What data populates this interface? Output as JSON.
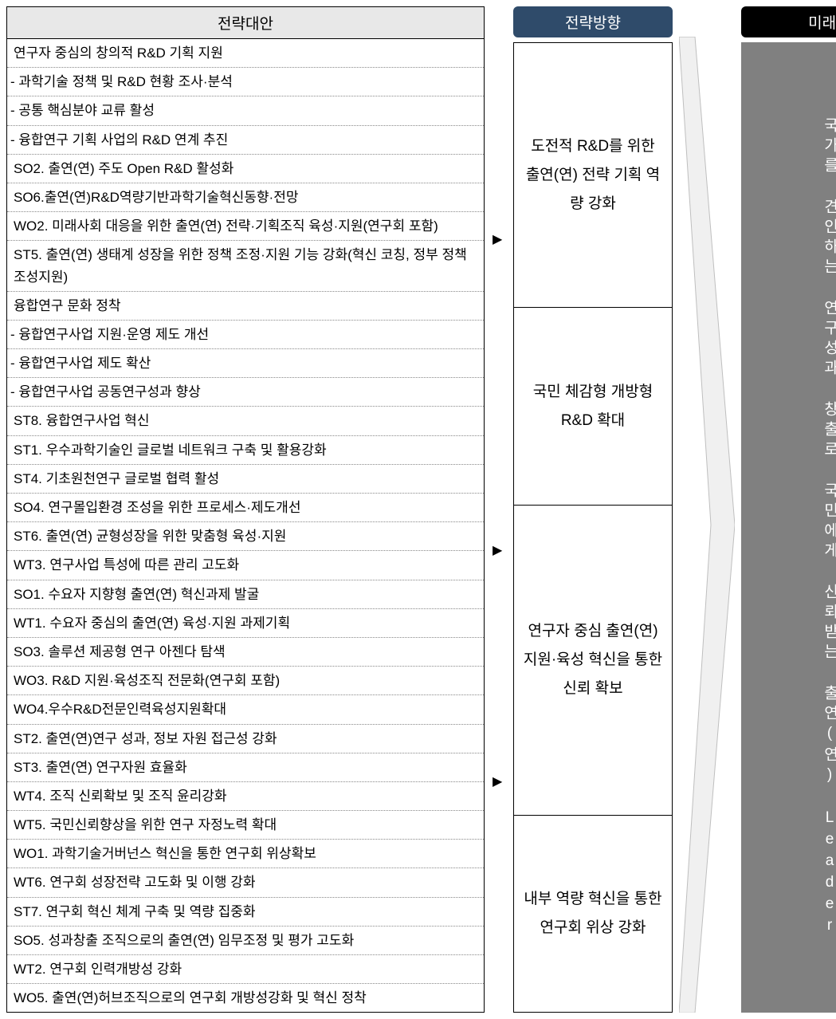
{
  "colors": {
    "left_header_bg": "#e8e8e8",
    "mid_header_bg": "#2f4b6a",
    "right_header_bg": "#000000",
    "right_body_bg": "#808080",
    "border": "#000000",
    "dotted_border": "#888888",
    "text": "#000000",
    "header_text": "#ffffff",
    "bigarrow_fill": "#f0f0f0",
    "bigarrow_stroke": "#bfbfbf"
  },
  "typography": {
    "base_fontsize": 17,
    "header_fontsize": 19,
    "block_fontsize": 19,
    "line_height": 1.6
  },
  "layout": {
    "total_width": 1049,
    "total_height": 1088,
    "col_left_width": 600,
    "col_mid_width": 200,
    "col_right_width": 110,
    "arrow_col_width": 20,
    "bigarrow_width": 70
  },
  "left": {
    "header": "전략대안",
    "rows": [
      "연구자 중심의 창의적 R&D 기획 지원",
      "- 과학기술 정책 및 R&D 현황 조사·분석",
      "- 공통 핵심분야 교류 활성",
      "- 융합연구 기획 사업의 R&D 연계 추진",
      "SO2. 출연(연) 주도 Open R&D 활성화",
      "SO6.출연(연)R&D역량기반과학기술혁신동향·전망",
      "WO2. 미래사회 대응을 위한 출연(연) 전략·기획조직 육성·지원(연구회 포함)",
      "ST5. 출연(연) 생태계 성장을 위한 정책 조정·지원 기능 강화(혁신 코칭, 정부 정책조성지원)",
      "융합연구 문화 정착",
      "- 융합연구사업 지원·운영 제도 개선",
      "- 융합연구사업 제도 확산",
      "- 융합연구사업 공동연구성과 향상",
      "ST8. 융합연구사업 혁신",
      "ST1. 우수과학기술인 글로벌 네트워크 구축 및 활용강화",
      "ST4. 기초원천연구 글로벌 협력 활성",
      "SO4. 연구몰입환경 조성을 위한 프로세스·제도개선",
      "ST6. 출연(연) 균형성장을 위한 맞춤형 육성·지원",
      "WT3. 연구사업 특성에 따른 관리 고도화",
      "SO1. 수요자  지향형 출연(연) 혁신과제 발굴",
      "WT1. 수요자 중심의 출연(연) 육성·지원 과제기획",
      "SO3. 솔루션 제공형 연구 아젠다 탐색",
      "WO3. R&D 지원·육성조직 전문화(연구회 포함)",
      "WO4.우수R&D전문인력육성지원확대",
      "ST2. 출연(연)연구 성과, 정보 자원 접근성 강화",
      "ST3. 출연(연) 연구자원 효율화",
      "WT4. 조직 신뢰확보 및 조직 윤리강화",
      "WT5. 국민신뢰향상을 위한 연구 자정노력 확대",
      "WO1. 과학기술거버넌스 혁신을 통한 연구회 위상확보",
      "WT6. 연구회 성장전략 고도화 및 이행 강화",
      "ST7. 연구회 혁신 체계 구축 및 역량 집중화",
      "SO5. 성과창출 조직으로의 출연(연) 임무조정 및 평가 고도화",
      "WT2. 연구회 인력개방성 강화",
      "WO5. 출연(연)허브조직으로의 연구회 개방성강화 및 혁신 정착"
    ]
  },
  "arrows": {
    "glyph": "▶",
    "positions_css_top": [
      "282px",
      "672px",
      "962px"
    ]
  },
  "mid": {
    "header": "전략방향",
    "blocks": [
      "도전적 R&D를 위한 출연(연) 전략 기획 역량 강화",
      "국민 체감형 개방형 R&D 확대",
      "연구자 중심 출연(연) 지원·육성 혁신을 통한 신뢰 확보",
      "내부 역량 혁신을 통한 연구회 위상 강화"
    ],
    "block_flex": [
      1.1,
      0.8,
      1.3,
      0.8
    ]
  },
  "right": {
    "header": "미래상",
    "body": "국가를 견인하는 연구성과 창출로 국민에게 신뢰받는 출연(연) Leader"
  }
}
